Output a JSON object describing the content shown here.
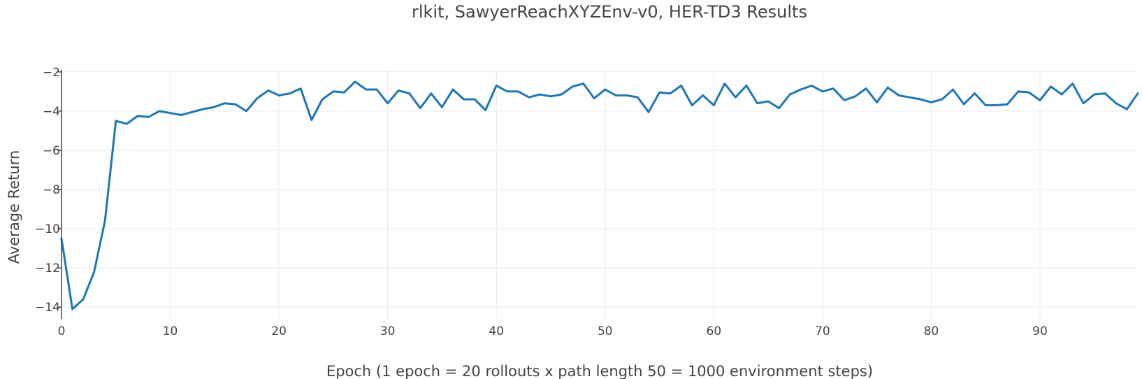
{
  "chart_data": {
    "type": "line",
    "title": "rlkit, SawyerReachXYZEnv-v0, HER-TD3 Results",
    "xlabel": "Epoch (1 epoch = 20 rollouts x path length 50 = 1000 environment steps)",
    "ylabel": "Average Return",
    "xlim": [
      0,
      99
    ],
    "ylim": [
      -14.6,
      -1.9
    ],
    "x_ticks": [
      0,
      10,
      20,
      30,
      40,
      50,
      60,
      70,
      80,
      90
    ],
    "y_ticks": [
      -2,
      -4,
      -6,
      -8,
      -10,
      -12,
      -14
    ],
    "x_tick_labels": [
      "0",
      "10",
      "20",
      "30",
      "40",
      "50",
      "60",
      "70",
      "80",
      "90"
    ],
    "y_tick_labels": [
      "−2",
      "−4",
      "−6",
      "−8",
      "−10",
      "−12",
      "−14"
    ],
    "grid": true,
    "legend": "none",
    "series": [
      {
        "color": "#1f77b4",
        "x": [
          0,
          1,
          2,
          3,
          4,
          5,
          6,
          7,
          8,
          9,
          10,
          11,
          12,
          13,
          14,
          15,
          16,
          17,
          18,
          19,
          20,
          21,
          22,
          23,
          24,
          25,
          26,
          27,
          28,
          29,
          30,
          31,
          32,
          33,
          34,
          35,
          36,
          37,
          38,
          39,
          40,
          41,
          42,
          43,
          44,
          45,
          46,
          47,
          48,
          49,
          50,
          51,
          52,
          53,
          54,
          55,
          56,
          57,
          58,
          59,
          60,
          61,
          62,
          63,
          64,
          65,
          66,
          67,
          68,
          69,
          70,
          71,
          72,
          73,
          74,
          75,
          76,
          77,
          78,
          79,
          80,
          81,
          82,
          83,
          84,
          85,
          86,
          87,
          88,
          89,
          90,
          91,
          92,
          93,
          94,
          95,
          96,
          97,
          98,
          99
        ],
        "values": [
          -10.5,
          -14.1,
          -13.6,
          -12.2,
          -9.6,
          -4.5,
          -4.65,
          -4.25,
          -4.3,
          -4.0,
          -4.1,
          -4.2,
          -4.05,
          -3.9,
          -3.8,
          -3.6,
          -3.65,
          -4.0,
          -3.35,
          -2.95,
          -3.2,
          -3.1,
          -2.85,
          -4.45,
          -3.4,
          -3.0,
          -3.05,
          -2.5,
          -2.9,
          -2.9,
          -3.6,
          -2.95,
          -3.1,
          -3.85,
          -3.1,
          -3.8,
          -2.9,
          -3.4,
          -3.4,
          -3.95,
          -2.7,
          -3.0,
          -3.0,
          -3.3,
          -3.15,
          -3.25,
          -3.15,
          -2.75,
          -2.6,
          -3.35,
          -2.9,
          -3.2,
          -3.2,
          -3.3,
          -4.05,
          -3.05,
          -3.1,
          -2.7,
          -3.7,
          -3.2,
          -3.7,
          -2.6,
          -3.3,
          -2.7,
          -3.6,
          -3.5,
          -3.85,
          -3.15,
          -2.9,
          -2.7,
          -3.0,
          -2.85,
          -3.45,
          -3.25,
          -2.85,
          -3.55,
          -2.8,
          -3.2,
          -3.3,
          -3.4,
          -3.55,
          -3.4,
          -2.9,
          -3.65,
          -3.1,
          -3.7,
          -3.7,
          -3.65,
          -3.0,
          -3.05,
          -3.45,
          -2.75,
          -3.15,
          -2.6,
          -3.6,
          -3.15,
          -3.1,
          -3.6,
          -3.9,
          -3.1
        ]
      }
    ]
  }
}
